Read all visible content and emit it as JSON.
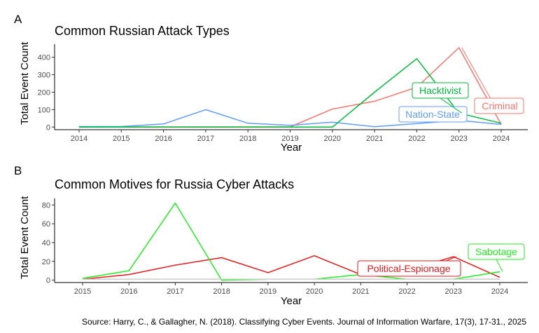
{
  "source_note": "Source: Harry, C., & Gallagher, N. (2018). Classifying Cyber Events. Journal of Information Warfare, 17(3), 17-31., 2025",
  "chart_data": [
    {
      "panel": "A",
      "type": "line",
      "title": "Common Russian Attack Types",
      "xlabel": "Year",
      "ylabel": "Total Event Count",
      "x": [
        2014,
        2015,
        2016,
        2017,
        2018,
        2019,
        2020,
        2021,
        2022,
        2023,
        2024
      ],
      "x_ticks": [
        "2014",
        "2015",
        "2016",
        "2017",
        "2018",
        "2019",
        "2020",
        "2021",
        "2022",
        "2023",
        "2024"
      ],
      "y_ticks": [
        "0",
        "100",
        "200",
        "300",
        "400"
      ],
      "ylim": [
        -15,
        475
      ],
      "grid": false,
      "legend": "direct labels",
      "series": [
        {
          "name": "Criminal",
          "color": "#f8766d",
          "values": [
            0,
            1,
            1,
            1,
            1,
            1,
            103,
            148,
            228,
            455,
            15
          ]
        },
        {
          "name": "Nation-State",
          "color": "#619cff",
          "values": [
            3,
            3,
            18,
            100,
            22,
            10,
            28,
            2,
            20,
            38,
            15
          ]
        },
        {
          "name": "Hacktivist",
          "color": "#00ba38",
          "values": [
            0,
            0,
            0,
            0,
            0,
            0,
            0,
            200,
            392,
            80,
            22
          ]
        }
      ]
    },
    {
      "panel": "B",
      "type": "line",
      "title": "Common Motives for Russia Cyber Attacks",
      "xlabel": "Year",
      "ylabel": "Total Event Count",
      "x": [
        2015,
        2016,
        2017,
        2018,
        2019,
        2020,
        2021,
        2022,
        2023,
        2024
      ],
      "x_ticks": [
        "2015",
        "2016",
        "2017",
        "2018",
        "2019",
        "2020",
        "2021",
        "2022",
        "2023",
        "2024"
      ],
      "y_ticks": [
        "0",
        "20",
        "40",
        "60",
        "80"
      ],
      "ylim": [
        -2.5,
        87
      ],
      "grid": false,
      "legend": "direct labels",
      "series": [
        {
          "name": "Political-Espionage",
          "color": "#e41a1c",
          "values": [
            1,
            6,
            16,
            24,
            8,
            26,
            6,
            10,
            25,
            3
          ]
        },
        {
          "name": "Sabotage",
          "color": "#22ee22",
          "values": [
            2,
            10,
            82,
            0,
            1,
            1,
            6,
            1,
            1,
            9
          ]
        },
        {
          "name": "",
          "color": "#cccccc",
          "values": [
            1,
            1,
            1,
            1,
            1,
            1,
            1,
            1,
            1,
            1
          ]
        }
      ]
    }
  ]
}
